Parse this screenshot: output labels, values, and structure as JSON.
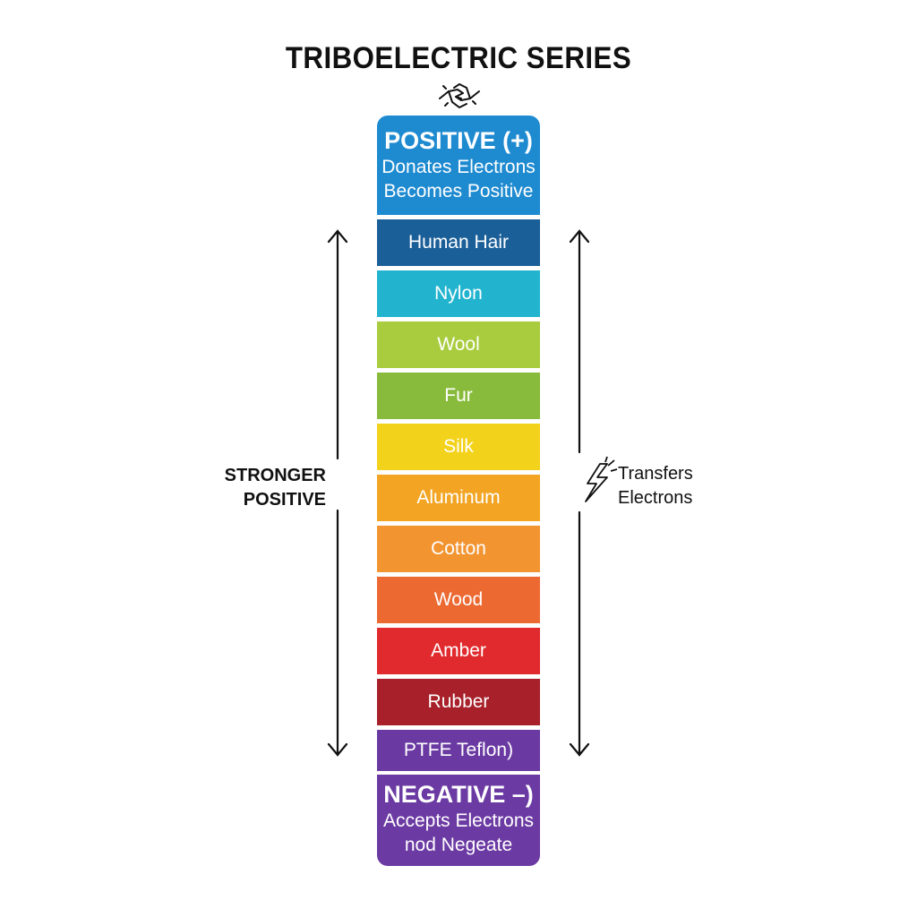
{
  "title": "TRIBOELECTRIC SERIES",
  "icons": {
    "top": "rubbing-hands-icon",
    "right": "lightning-bolt-icon"
  },
  "positive_box": {
    "title": "POSITIVE (+)",
    "line1": "Donates Electrons",
    "line2": "Becomes Positive",
    "color": "#1e8ad0"
  },
  "materials": [
    {
      "label": "Human Hair",
      "color": "#1b5f98"
    },
    {
      "label": "Nylon",
      "color": "#22b4cf"
    },
    {
      "label": "Wool",
      "color": "#a9cc3f"
    },
    {
      "label": "Fur",
      "color": "#88bb3b"
    },
    {
      "label": "Silk",
      "color": "#f3d21c"
    },
    {
      "label": "Aluminum",
      "color": "#f2a422"
    },
    {
      "label": "Cotton",
      "color": "#f29430"
    },
    {
      "label": "Wood",
      "color": "#ec6a32"
    },
    {
      "label": "Amber",
      "color": "#e12a2d"
    },
    {
      "label": "Rubber",
      "color": "#a7202a"
    },
    {
      "label": "PTFE Teflon)",
      "color": "#6a3aa2"
    }
  ],
  "negative_box": {
    "title": "NEGATIVE –)",
    "line1": "Accepts Electrons",
    "line2": "nod Negeate",
    "color": "#6b3aa3"
  },
  "left_label": {
    "line1": "STRONGER",
    "line2": "POSITIVE"
  },
  "right_label": {
    "line1": "Transfers",
    "line2": "Electrons"
  }
}
